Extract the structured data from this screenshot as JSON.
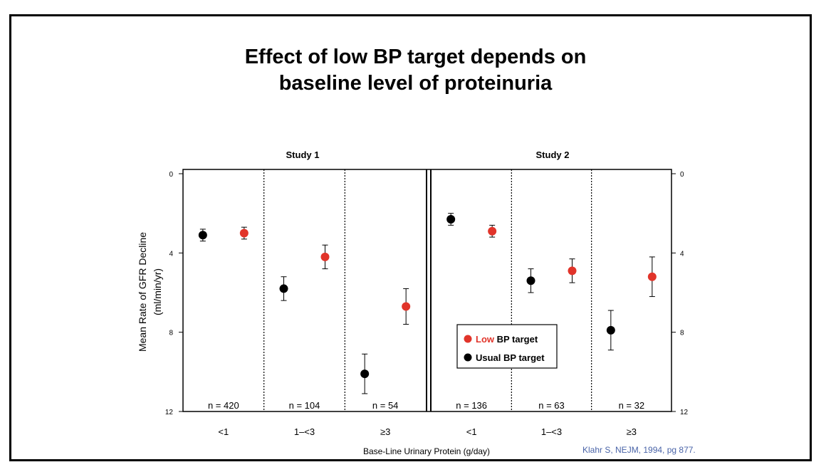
{
  "title_lines": [
    "Effect of low BP target depends on",
    "baseline level of proteinuria"
  ],
  "credit": "Klahr S, NEJM, 1994, pg 877.",
  "colors": {
    "low": "#e1342a",
    "usual": "#000000"
  },
  "chart_data": {
    "type": "scatter",
    "title": "Effect of low BP target depends on baseline level of proteinuria",
    "xlabel": "Base-Line Urinary Protein (g/day)",
    "ylabel_lines": [
      "Mean Rate of GFR Decline",
      "(ml/min/yr)"
    ],
    "ylim": [
      0,
      12
    ],
    "y_inverted": true,
    "yticks": [
      0,
      4,
      8,
      12
    ],
    "ytick_labels": [
      "0",
      "4",
      "8",
      "12"
    ],
    "legend_placement": "inside, lower-right of Study 2",
    "studies": [
      {
        "name": "Study 1",
        "groups": [
          {
            "category": "<1",
            "n_label": "n = 420",
            "usual": {
              "value": 3.1,
              "err_low": 2.8,
              "err_high": 3.4
            },
            "low": {
              "value": 3.0,
              "err_low": 2.7,
              "err_high": 3.3
            }
          },
          {
            "category": "1–<3",
            "n_label": "n = 104",
            "usual": {
              "value": 5.8,
              "err_low": 5.2,
              "err_high": 6.4
            },
            "low": {
              "value": 4.2,
              "err_low": 3.6,
              "err_high": 4.8
            }
          },
          {
            "category": "≥3",
            "n_label": "n = 54",
            "usual": {
              "value": 10.1,
              "err_low": 9.1,
              "err_high": 11.1
            },
            "low": {
              "value": 6.7,
              "err_low": 5.8,
              "err_high": 7.6
            }
          }
        ]
      },
      {
        "name": "Study 2",
        "groups": [
          {
            "category": "<1",
            "n_label": "n = 136",
            "usual": {
              "value": 2.3,
              "err_low": 2.0,
              "err_high": 2.6
            },
            "low": {
              "value": 2.9,
              "err_low": 2.6,
              "err_high": 3.2
            }
          },
          {
            "category": "1–<3",
            "n_label": "n = 63",
            "usual": {
              "value": 5.4,
              "err_low": 4.8,
              "err_high": 6.0
            },
            "low": {
              "value": 4.9,
              "err_low": 4.3,
              "err_high": 5.5
            }
          },
          {
            "category": "≥3",
            "n_label": "n = 32",
            "usual": {
              "value": 7.9,
              "err_low": 6.9,
              "err_high": 8.9
            },
            "low": {
              "value": 5.2,
              "err_low": 4.2,
              "err_high": 6.2
            }
          }
        ]
      }
    ],
    "legend": [
      {
        "key": "low",
        "prefix": "Low",
        "suffix": " BP target"
      },
      {
        "key": "usual",
        "prefix": "Usual",
        "suffix": " BP target"
      }
    ]
  }
}
